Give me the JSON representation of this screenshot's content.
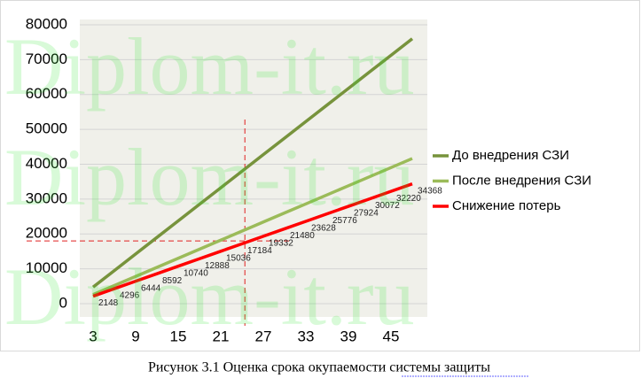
{
  "chart_data": {
    "type": "line",
    "categories": [
      3,
      null,
      9,
      null,
      15,
      null,
      21,
      null,
      27,
      null,
      33,
      null,
      39,
      null,
      45,
      null
    ],
    "series": [
      {
        "name": "До внедрения СЗИ",
        "color": "#77933c",
        "values": [
          4750,
          9500,
          14250,
          19000,
          23750,
          28500,
          33250,
          38000,
          42750,
          47500,
          52250,
          57000,
          61750,
          66500,
          71250,
          76000
        ]
      },
      {
        "name": "После внедрения СЗИ",
        "color": "#9bbb59",
        "values": [
          2602,
          5204,
          7806,
          10408,
          13010,
          15612,
          18214,
          20816,
          23418,
          26020,
          28622,
          31224,
          33826,
          36428,
          39030,
          41632
        ]
      },
      {
        "name": "Снижение потерь",
        "color": "#ff0000",
        "values": [
          2148,
          4296,
          6444,
          8592,
          10740,
          12888,
          15036,
          17184,
          19332,
          21480,
          23628,
          25776,
          27924,
          30072,
          32220,
          34368
        ],
        "data_labels": true
      }
    ],
    "ylim": [
      0,
      80000
    ],
    "yticks": [
      0,
      10000,
      20000,
      30000,
      40000,
      50000,
      60000,
      70000,
      80000
    ],
    "grid": true,
    "legend": "right",
    "payback_marker": {
      "x": 24.4,
      "y": 18000,
      "color": "#e02020"
    },
    "caption": "Рисунок 3.1 Оценка срока окупаемости системы  защиты",
    "watermark": "Diplom-it.ru"
  }
}
